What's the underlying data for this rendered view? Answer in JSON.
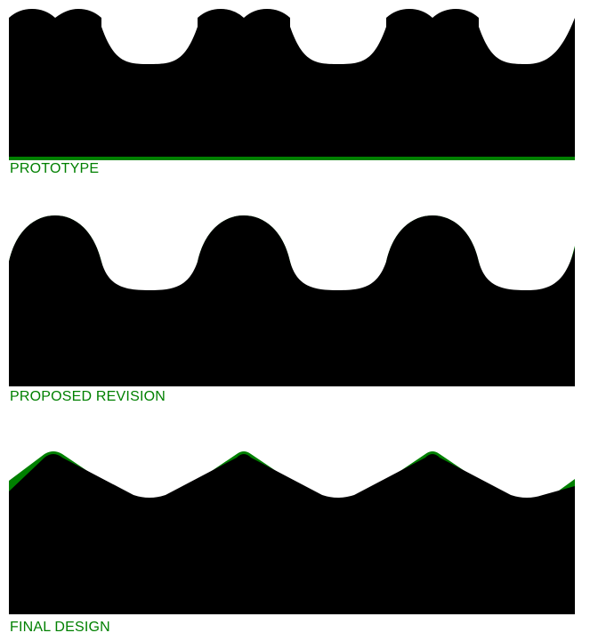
{
  "colors": {
    "background": "#ffffff",
    "profile": "#000000",
    "offset_band": "#008000",
    "label": "#008000"
  },
  "panels": [
    {
      "label": "PROTOTYPE"
    },
    {
      "label": "PROPOSED REVISION"
    },
    {
      "label": "FINAL DESIGN"
    }
  ]
}
